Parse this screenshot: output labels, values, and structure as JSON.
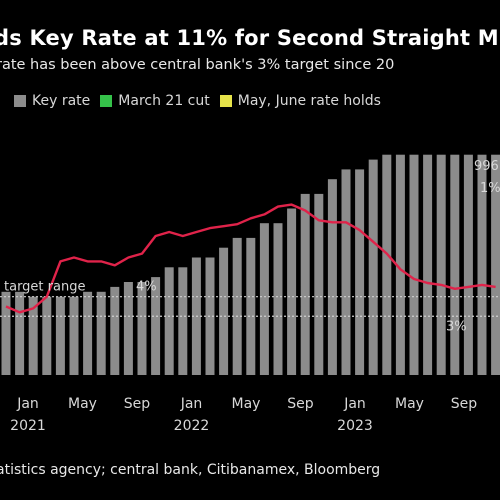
{
  "title": "ds Key Rate at 11% for Second Straight M",
  "subtitle": "rate has been above central bank's 3% target since 20",
  "legend": [
    {
      "label": "Key rate",
      "color": "#8c8c8c"
    },
    {
      "label": "March 21 cut",
      "color": "#35c24a"
    },
    {
      "label": "May, June rate holds",
      "color": "#e6e34a"
    }
  ],
  "source": "atistics agency; central bank, Citibanamex, Bloomberg",
  "annotations": {
    "target_range": "target range",
    "target_value": "4%",
    "right_top": "996",
    "right_mid": "1%",
    "lower_right": "3%"
  },
  "colors": {
    "background": "#000000",
    "bar": "#8c8c8c",
    "inflation_line": "#e0234a",
    "target_line": "#d0d0d0"
  },
  "chart_data": {
    "type": "bar",
    "x_tick_labels": [
      {
        "month": "Jan",
        "year": "2021"
      },
      {
        "month": "May",
        "year": ""
      },
      {
        "month": "Sep",
        "year": ""
      },
      {
        "month": "Jan",
        "year": "2022"
      },
      {
        "month": "May",
        "year": ""
      },
      {
        "month": "Sep",
        "year": ""
      },
      {
        "month": "Jan",
        "year": "2023"
      },
      {
        "month": "May",
        "year": ""
      },
      {
        "month": "Sep",
        "year": ""
      }
    ],
    "ylim": [
      0,
      12
    ],
    "target_value": 3,
    "target_range_top": 4,
    "series": [
      {
        "name": "Key rate",
        "type": "bar",
        "values": [
          4.25,
          4.25,
          4.0,
          4.0,
          4.0,
          4.0,
          4.25,
          4.25,
          4.5,
          4.75,
          4.75,
          5.0,
          5.5,
          5.5,
          6.0,
          6.0,
          6.5,
          7.0,
          7.0,
          7.75,
          7.75,
          8.5,
          9.25,
          9.25,
          10.0,
          10.5,
          10.5,
          11.0,
          11.25,
          11.25,
          11.25,
          11.25,
          11.25,
          11.25,
          11.25,
          11.25,
          11.25
        ]
      },
      {
        "name": "",
        "type": "line",
        "values": [
          3.5,
          3.2,
          3.4,
          4.0,
          5.8,
          6.0,
          5.8,
          5.8,
          5.6,
          6.0,
          6.2,
          7.1,
          7.3,
          7.1,
          7.3,
          7.5,
          7.6,
          7.7,
          8.0,
          8.2,
          8.6,
          8.7,
          8.4,
          7.9,
          7.8,
          7.8,
          7.4,
          6.8,
          6.2,
          5.4,
          4.9,
          4.7,
          4.6,
          4.4,
          4.5,
          4.6,
          4.5
        ]
      }
    ]
  }
}
